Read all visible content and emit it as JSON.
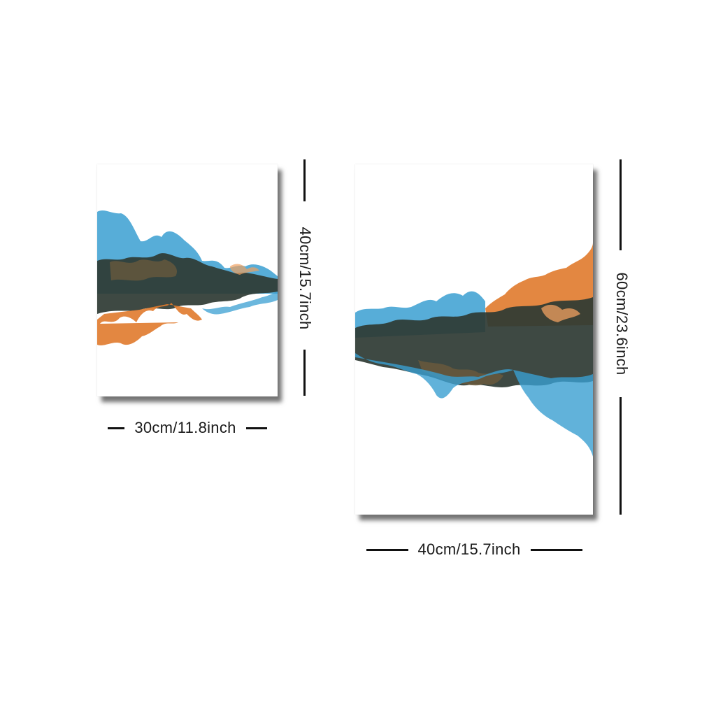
{
  "prints": [
    {
      "width_label": "30cm/11.8inch",
      "height_label": "40cm/15.7inch"
    },
    {
      "width_label": "40cm/15.7inch",
      "height_label": "60cm/23.6inch"
    }
  ],
  "colors": {
    "background": "#ffffff",
    "ink_blue": "#3a9fd1",
    "ink_orange": "#e07a2c",
    "ink_dark": "#2e3a33",
    "ink_brown": "#6b5a3c",
    "rule": "#111111"
  }
}
